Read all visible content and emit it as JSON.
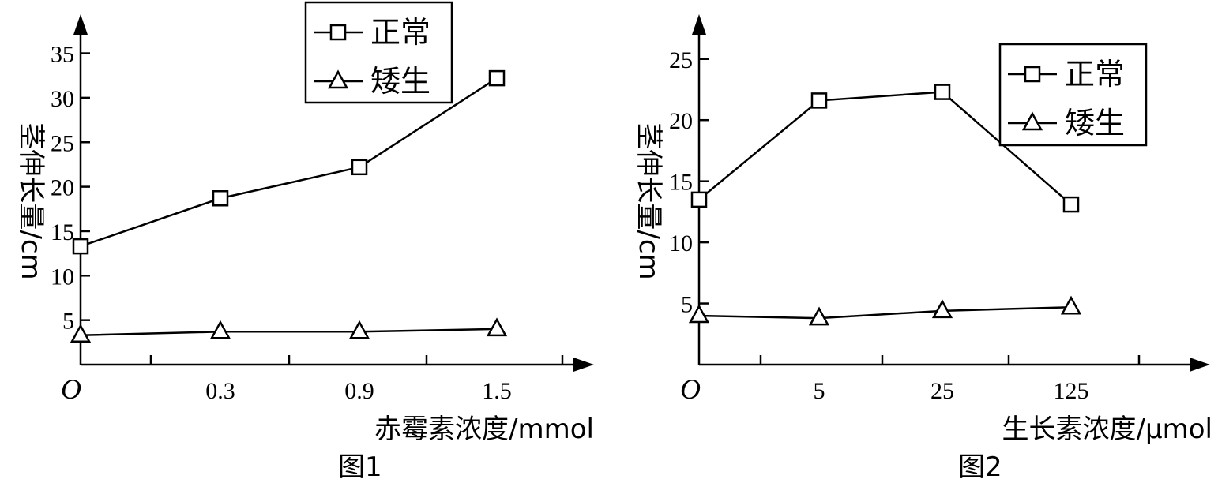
{
  "chart_data": [
    {
      "type": "line",
      "caption": "图1",
      "xlabel": "赤霉素浓度/mmol",
      "ylabel": "茎伸长量/cm",
      "origin_label": "O",
      "categories": [
        "0",
        "0.3",
        "0.9",
        "1.5"
      ],
      "x_tick_labels": [
        "0.3",
        "0.9",
        "1.5"
      ],
      "y_ticks": [
        5,
        10,
        15,
        20,
        25,
        30,
        35
      ],
      "ylim": [
        0,
        38
      ],
      "series": [
        {
          "name": "正常",
          "marker": "square",
          "values": [
            13.3,
            18.7,
            22.2,
            32.2
          ]
        },
        {
          "name": "矮生",
          "marker": "triangle",
          "values": [
            3.3,
            3.7,
            3.7,
            4.0
          ]
        }
      ],
      "legend": [
        "正常",
        "矮生"
      ],
      "legend_position": "top-right"
    },
    {
      "type": "line",
      "caption": "图2",
      "xlabel": "生长素浓度/μmol",
      "ylabel": "茎伸长量/cm",
      "origin_label": "O",
      "categories": [
        "0",
        "5",
        "25",
        "125"
      ],
      "x_tick_labels": [
        "5",
        "25",
        "125"
      ],
      "y_ticks": [
        5,
        10,
        15,
        20,
        25
      ],
      "ylim": [
        0,
        28
      ],
      "series": [
        {
          "name": "正常",
          "marker": "square",
          "values": [
            13.5,
            21.6,
            22.3,
            13.1
          ]
        },
        {
          "name": "矮生",
          "marker": "triangle",
          "values": [
            4.0,
            3.8,
            4.4,
            4.7
          ]
        }
      ],
      "legend": [
        "正常",
        "矮生"
      ],
      "legend_position": "top-right"
    }
  ]
}
